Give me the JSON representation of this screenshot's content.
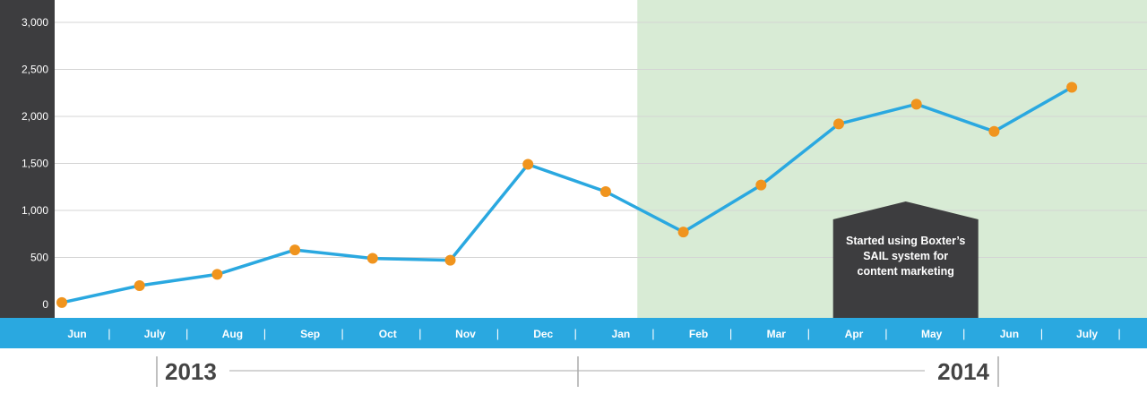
{
  "chart_data": {
    "type": "line",
    "categories": [
      "Jun",
      "July",
      "Aug",
      "Sep",
      "Oct",
      "Nov",
      "Dec",
      "Jan",
      "Feb",
      "Mar",
      "Apr",
      "May",
      "Jun",
      "July"
    ],
    "values": [
      20,
      200,
      320,
      580,
      490,
      470,
      1490,
      1200,
      770,
      1270,
      1920,
      2130,
      1840,
      2310
    ],
    "ylim": [
      0,
      3000
    ],
    "y_ticks": [
      {
        "value": 0,
        "label": "0"
      },
      {
        "value": 500,
        "label": "500"
      },
      {
        "value": 1000,
        "label": "1,000"
      },
      {
        "value": 1500,
        "label": "1,500"
      },
      {
        "value": 2000,
        "label": "2,000"
      },
      {
        "value": 2500,
        "label": "2,500"
      },
      {
        "value": 3000,
        "label": "3,000"
      }
    ],
    "grid": true,
    "years": [
      {
        "label": "2013",
        "start_index": 0,
        "end_index": 6
      },
      {
        "label": "2014",
        "start_index": 7,
        "end_index": 13
      }
    ],
    "highlight_region": {
      "from_index": 7.5,
      "to_index": 13
    },
    "annotation": {
      "lines": [
        "Started using Boxter’s",
        "SAIL system for",
        "content marketing"
      ],
      "category_index": 11
    },
    "separator": "|"
  },
  "colors": {
    "line": "#2aa8e0",
    "marker": "#f0941e",
    "axis_bar": "#2aa8e0",
    "y_panel": "#3d3d3f",
    "highlight": "#d8ebd5",
    "callout": "#3d3d3f",
    "grid": "#d4d4d4",
    "year_text": "#444444"
  }
}
